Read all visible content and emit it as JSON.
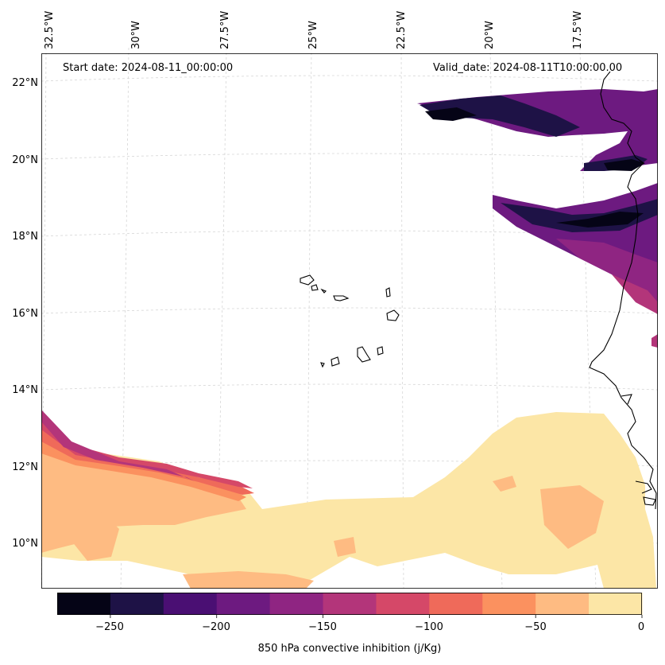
{
  "header": {
    "start_date": "Start date: 2024-08-11_00:00:00",
    "valid_date": "Valid_date: 2024-08-11T10:00:00.00"
  },
  "axes": {
    "lon_ticks": [
      "32.5°W",
      "30°W",
      "27.5°W",
      "25°W",
      "22.5°W",
      "20°W",
      "17.5°W"
    ],
    "lat_ticks": [
      "22°N",
      "20°N",
      "18°N",
      "16°N",
      "14°N",
      "12°N",
      "10°N"
    ]
  },
  "colorbar": {
    "label": "850 hPa convective inhibition (j/Kg)",
    "tick_labels": [
      "−250",
      "−200",
      "−150",
      "−100",
      "−50",
      "0"
    ],
    "levels": [
      -275,
      -250,
      -225,
      -200,
      -175,
      -150,
      -125,
      -100,
      -75,
      -50,
      -25,
      0
    ],
    "colors": [
      "#050416",
      "#1e1246",
      "#4a0f73",
      "#6d1a80",
      "#8f2582",
      "#b3357a",
      "#d54868",
      "#ef6a5a",
      "#fb915f",
      "#febb82",
      "#fce6a6"
    ]
  }
}
